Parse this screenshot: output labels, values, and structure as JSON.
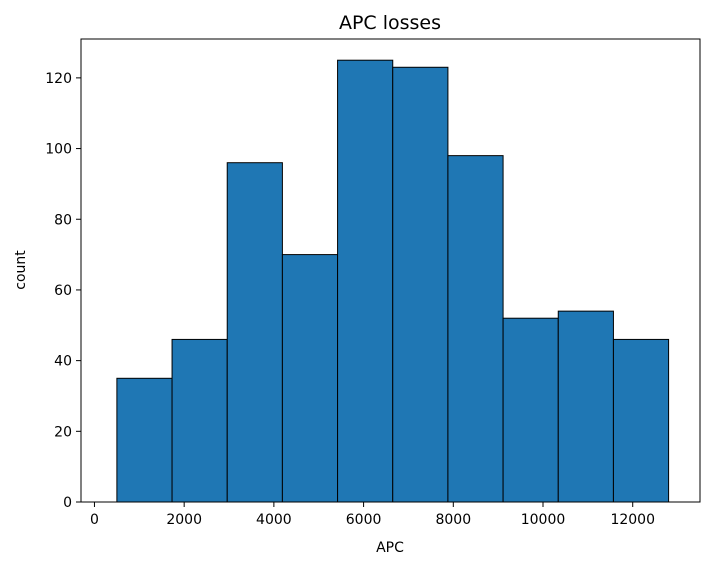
{
  "chart_data": {
    "type": "histogram",
    "title": "APC losses",
    "xlabel": "APC",
    "ylabel": "count",
    "xlim": [
      -300,
      13500
    ],
    "ylim": [
      0,
      131
    ],
    "xticks": [
      0,
      2000,
      4000,
      6000,
      8000,
      10000,
      12000
    ],
    "yticks": [
      0,
      20,
      40,
      60,
      80,
      100,
      120
    ],
    "bins": [
      {
        "x0": 500,
        "x1": 1730,
        "count": 35
      },
      {
        "x0": 1730,
        "x1": 2960,
        "count": 46
      },
      {
        "x0": 2960,
        "x1": 4190,
        "count": 96
      },
      {
        "x0": 4190,
        "x1": 5420,
        "count": 70
      },
      {
        "x0": 5420,
        "x1": 6650,
        "count": 125
      },
      {
        "x0": 6650,
        "x1": 7880,
        "count": 123
      },
      {
        "x0": 7880,
        "x1": 9110,
        "count": 98
      },
      {
        "x0": 9110,
        "x1": 10340,
        "count": 52
      },
      {
        "x0": 10340,
        "x1": 11570,
        "count": 54
      },
      {
        "x0": 11570,
        "x1": 12800,
        "count": 46
      }
    ],
    "bar_color": "#1f77b4",
    "edge_color": "#000000",
    "grid": false,
    "legend": "none"
  }
}
